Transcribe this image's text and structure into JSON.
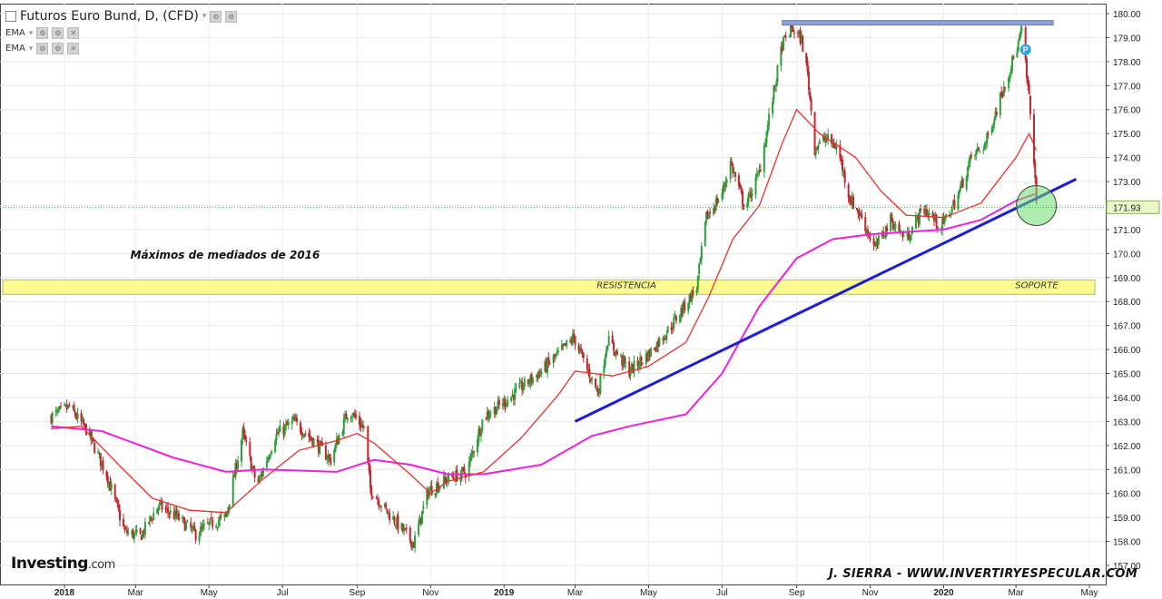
{
  "header": {
    "title": "Futuros Euro Bund, D, (CFD)",
    "indicators": [
      "EMA",
      "EMA"
    ]
  },
  "branding": {
    "logo_main": "Investing",
    "logo_suffix": ".com"
  },
  "signature": "J. SIERRA - WWW.INVERTIRYESPECULAR.COM",
  "colors": {
    "up": "#2e9e3a",
    "down": "#c0262c",
    "ema_fast": "#e8312c",
    "ema_slow": "#ee22dd",
    "trendline": "#1c1cdb",
    "resistance_line": "#8d9fd6",
    "band": "#fbfb8f"
  },
  "chart_data": {
    "type": "line",
    "series_kind": "candlestick price with two EMA overlays",
    "x_axis_labels": [
      "2018",
      "Mar",
      "May",
      "Jul",
      "Sep",
      "Nov",
      "2019",
      "Mar",
      "May",
      "Jul",
      "Sep",
      "Nov",
      "2020",
      "Mar",
      "May"
    ],
    "y_axis_labels": [
      "157.00",
      "158.00",
      "159.00",
      "160.00",
      "161.00",
      "162.00",
      "163.00",
      "164.00",
      "165.00",
      "166.00",
      "167.00",
      "168.00",
      "169.00",
      "170.00",
      "171.00",
      "172.00",
      "173.00",
      "174.00",
      "175.00",
      "176.00",
      "177.00",
      "178.00",
      "179.00",
      "180.00"
    ],
    "ylim": [
      157,
      180
    ],
    "x_range": [
      "2018-01-01",
      "2020-05-01"
    ],
    "last_price": "171.93",
    "price_anchors": [
      [
        "2017-12-21",
        163.2
      ],
      [
        "2018-01-05",
        163.6
      ],
      [
        "2018-01-20",
        162.6
      ],
      [
        "2018-02-05",
        160.8
      ],
      [
        "2018-02-20",
        158.4
      ],
      [
        "2018-03-05",
        158.2
      ],
      [
        "2018-03-20",
        159.5
      ],
      [
        "2018-04-05",
        159.0
      ],
      [
        "2018-04-20",
        158.3
      ],
      [
        "2018-05-05",
        158.8
      ],
      [
        "2018-05-15",
        159.0
      ],
      [
        "2018-05-29",
        162.5
      ],
      [
        "2018-06-10",
        160.3
      ],
      [
        "2018-06-25",
        162.4
      ],
      [
        "2018-07-10",
        163.0
      ],
      [
        "2018-07-25",
        162.3
      ],
      [
        "2018-08-10",
        161.4
      ],
      [
        "2018-08-25",
        163.5
      ],
      [
        "2018-09-07",
        162.7
      ],
      [
        "2018-09-12",
        160.2
      ],
      [
        "2018-09-25",
        159.3
      ],
      [
        "2018-10-10",
        158.4
      ],
      [
        "2018-10-18",
        157.9
      ],
      [
        "2018-10-30",
        160.1
      ],
      [
        "2018-11-15",
        160.6
      ],
      [
        "2018-12-01",
        160.9
      ],
      [
        "2018-12-15",
        163.2
      ],
      [
        "2019-01-01",
        163.8
      ],
      [
        "2019-01-15",
        164.4
      ],
      [
        "2019-02-01",
        165.1
      ],
      [
        "2019-02-15",
        165.8
      ],
      [
        "2019-02-28",
        166.5
      ],
      [
        "2019-03-10",
        165.3
      ],
      [
        "2019-03-20",
        164.2
      ],
      [
        "2019-03-28",
        166.4
      ],
      [
        "2019-04-15",
        165.1
      ],
      [
        "2019-05-01",
        165.8
      ],
      [
        "2019-05-20",
        167.0
      ],
      [
        "2019-06-10",
        168.6
      ],
      [
        "2019-06-18",
        171.5
      ],
      [
        "2019-07-01",
        172.5
      ],
      [
        "2019-07-08",
        173.8
      ],
      [
        "2019-07-20",
        171.9
      ],
      [
        "2019-08-01",
        173.4
      ],
      [
        "2019-08-20",
        178.7
      ],
      [
        "2019-08-28",
        179.4
      ],
      [
        "2019-09-05",
        178.9
      ],
      [
        "2019-09-10",
        177.5
      ],
      [
        "2019-09-16",
        174.4
      ],
      [
        "2019-09-25",
        174.8
      ],
      [
        "2019-10-05",
        174.4
      ],
      [
        "2019-10-15",
        172.3
      ],
      [
        "2019-10-25",
        171.5
      ],
      [
        "2019-11-05",
        170.2
      ],
      [
        "2019-11-18",
        171.4
      ],
      [
        "2019-12-01",
        170.6
      ],
      [
        "2019-12-15",
        171.9
      ],
      [
        "2019-12-30",
        171.1
      ],
      [
        "2020-01-12",
        172.3
      ],
      [
        "2020-01-24",
        174.0
      ],
      [
        "2020-02-05",
        174.6
      ],
      [
        "2020-02-20",
        177.0
      ],
      [
        "2020-03-01",
        178.4
      ],
      [
        "2020-03-06",
        179.3
      ],
      [
        "2020-03-12",
        176.4
      ],
      [
        "2020-03-16",
        174.0
      ],
      [
        "2020-03-18",
        171.93
      ]
    ],
    "ema_fast": [
      [
        "2017-12-21",
        162.7
      ],
      [
        "2018-01-15",
        162.8
      ],
      [
        "2018-02-15",
        161.2
      ],
      [
        "2018-03-15",
        159.8
      ],
      [
        "2018-04-15",
        159.3
      ],
      [
        "2018-05-15",
        159.2
      ],
      [
        "2018-06-15",
        160.6
      ],
      [
        "2018-07-15",
        161.8
      ],
      [
        "2018-08-15",
        162.2
      ],
      [
        "2018-09-01",
        162.5
      ],
      [
        "2018-09-15",
        162.1
      ],
      [
        "2018-10-15",
        160.8
      ],
      [
        "2018-11-01",
        160.0
      ],
      [
        "2018-11-15",
        160.5
      ],
      [
        "2018-12-15",
        160.9
      ],
      [
        "2019-01-15",
        162.3
      ],
      [
        "2019-02-15",
        164.1
      ],
      [
        "2019-03-01",
        165.1
      ],
      [
        "2019-04-01",
        164.9
      ],
      [
        "2019-05-01",
        165.3
      ],
      [
        "2019-06-01",
        166.3
      ],
      [
        "2019-06-20",
        168.2
      ],
      [
        "2019-07-10",
        170.6
      ],
      [
        "2019-08-01",
        172.0
      ],
      [
        "2019-08-20",
        174.6
      ],
      [
        "2019-09-01",
        176.0
      ],
      [
        "2019-09-20",
        175.0
      ],
      [
        "2019-10-20",
        174.0
      ],
      [
        "2019-11-10",
        172.6
      ],
      [
        "2019-12-01",
        171.6
      ],
      [
        "2020-01-01",
        171.5
      ],
      [
        "2020-02-01",
        172.1
      ],
      [
        "2020-03-01",
        174.0
      ],
      [
        "2020-03-12",
        175.0
      ],
      [
        "2020-03-18",
        174.3
      ]
    ],
    "ema_slow": [
      [
        "2017-12-21",
        162.8
      ],
      [
        "2018-02-01",
        162.6
      ],
      [
        "2018-04-01",
        161.5
      ],
      [
        "2018-05-15",
        160.9
      ],
      [
        "2018-06-15",
        161.0
      ],
      [
        "2018-08-15",
        160.9
      ],
      [
        "2018-09-15",
        161.4
      ],
      [
        "2018-10-15",
        161.2
      ],
      [
        "2018-11-15",
        160.8
      ],
      [
        "2018-12-15",
        160.8
      ],
      [
        "2019-02-01",
        161.2
      ],
      [
        "2019-03-15",
        162.4
      ],
      [
        "2019-04-15",
        162.8
      ],
      [
        "2019-06-01",
        163.3
      ],
      [
        "2019-07-01",
        165.0
      ],
      [
        "2019-08-01",
        167.8
      ],
      [
        "2019-09-01",
        169.8
      ],
      [
        "2019-10-01",
        170.6
      ],
      [
        "2019-11-01",
        170.8
      ],
      [
        "2019-12-01",
        170.9
      ],
      [
        "2020-01-01",
        171.0
      ],
      [
        "2020-02-01",
        171.4
      ],
      [
        "2020-03-01",
        172.2
      ],
      [
        "2020-03-18",
        172.5
      ]
    ],
    "trendline": {
      "from": [
        "2019-03-01",
        163.0
      ],
      "to": [
        "2020-04-20",
        173.1
      ]
    },
    "resistance_line": {
      "from": [
        "2019-08-20",
        179.6
      ],
      "to": [
        "2020-04-01",
        179.6
      ]
    },
    "band": {
      "label_left": "RESISTENCIA",
      "label_right": "SOPORTE",
      "ylim": [
        168.3,
        168.9
      ]
    },
    "band_title": "Máximos de mediados de 2016",
    "circle_center": [
      "2020-03-18",
      172.0
    ],
    "marker_label": "P",
    "marker_at": [
      "2020-03-09",
      178.5
    ]
  }
}
